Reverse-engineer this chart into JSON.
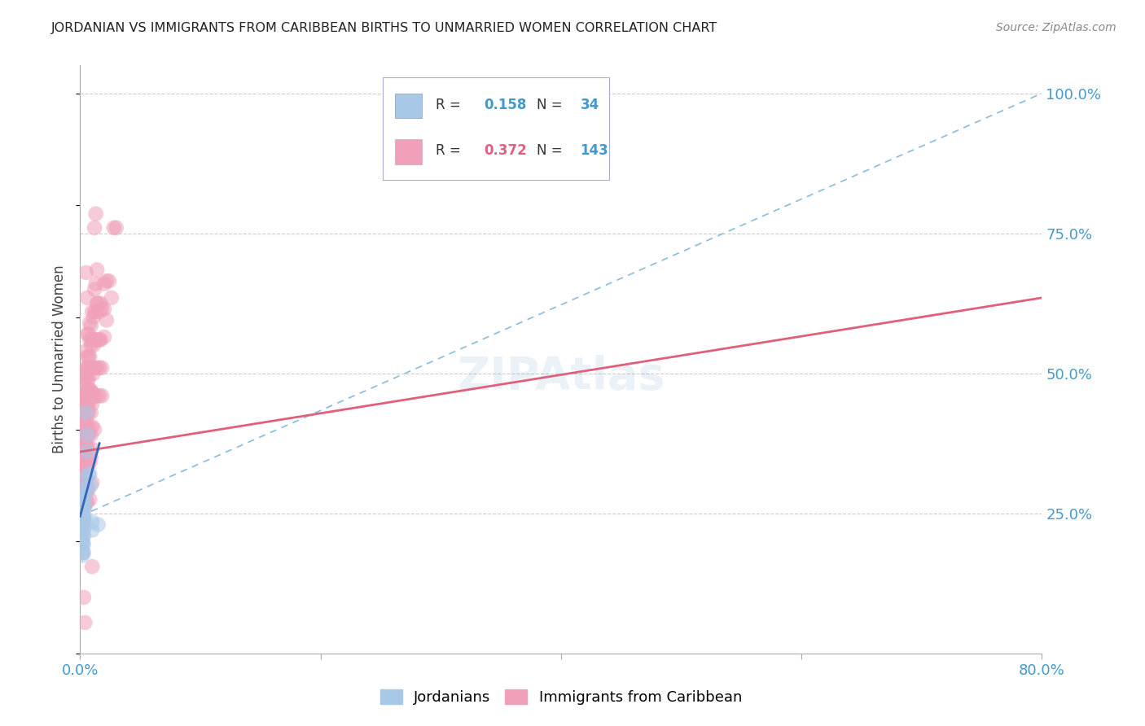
{
  "title": "JORDANIAN VS IMMIGRANTS FROM CARIBBEAN BIRTHS TO UNMARRIED WOMEN CORRELATION CHART",
  "source": "Source: ZipAtlas.com",
  "ylabel": "Births to Unmarried Women",
  "legend_jordanians": {
    "R": 0.158,
    "N": 34,
    "color": "#a8c8e8"
  },
  "legend_caribbean": {
    "R": 0.372,
    "N": 143,
    "color": "#f0a0b8"
  },
  "axis_color": "#4499cc",
  "jordanians_scatter": [
    [
      0.002,
      0.285
    ],
    [
      0.002,
      0.275
    ],
    [
      0.002,
      0.265
    ],
    [
      0.002,
      0.255
    ],
    [
      0.002,
      0.245
    ],
    [
      0.002,
      0.235
    ],
    [
      0.002,
      0.225
    ],
    [
      0.002,
      0.215
    ],
    [
      0.002,
      0.205
    ],
    [
      0.002,
      0.195
    ],
    [
      0.002,
      0.185
    ],
    [
      0.002,
      0.175
    ],
    [
      0.003,
      0.29
    ],
    [
      0.003,
      0.27
    ],
    [
      0.003,
      0.255
    ],
    [
      0.003,
      0.24
    ],
    [
      0.003,
      0.225
    ],
    [
      0.003,
      0.21
    ],
    [
      0.003,
      0.195
    ],
    [
      0.003,
      0.18
    ],
    [
      0.004,
      0.31
    ],
    [
      0.004,
      0.28
    ],
    [
      0.004,
      0.26
    ],
    [
      0.004,
      0.24
    ],
    [
      0.005,
      0.43
    ],
    [
      0.006,
      0.39
    ],
    [
      0.006,
      0.36
    ],
    [
      0.007,
      0.32
    ],
    [
      0.007,
      0.295
    ],
    [
      0.008,
      0.32
    ],
    [
      0.009,
      0.3
    ],
    [
      0.01,
      0.235
    ],
    [
      0.01,
      0.22
    ],
    [
      0.015,
      0.23
    ]
  ],
  "caribbean_scatter": [
    [
      0.002,
      0.38
    ],
    [
      0.002,
      0.36
    ],
    [
      0.002,
      0.34
    ],
    [
      0.002,
      0.32
    ],
    [
      0.002,
      0.3
    ],
    [
      0.002,
      0.28
    ],
    [
      0.002,
      0.26
    ],
    [
      0.002,
      0.24
    ],
    [
      0.002,
      0.22
    ],
    [
      0.002,
      0.2
    ],
    [
      0.002,
      0.18
    ],
    [
      0.003,
      0.46
    ],
    [
      0.003,
      0.44
    ],
    [
      0.003,
      0.42
    ],
    [
      0.003,
      0.4
    ],
    [
      0.003,
      0.38
    ],
    [
      0.003,
      0.36
    ],
    [
      0.003,
      0.34
    ],
    [
      0.003,
      0.32
    ],
    [
      0.003,
      0.3
    ],
    [
      0.003,
      0.28
    ],
    [
      0.003,
      0.26
    ],
    [
      0.003,
      0.24
    ],
    [
      0.003,
      0.22
    ],
    [
      0.003,
      0.1
    ],
    [
      0.004,
      0.5
    ],
    [
      0.004,
      0.48
    ],
    [
      0.004,
      0.46
    ],
    [
      0.004,
      0.44
    ],
    [
      0.004,
      0.42
    ],
    [
      0.004,
      0.4
    ],
    [
      0.004,
      0.38
    ],
    [
      0.004,
      0.36
    ],
    [
      0.004,
      0.34
    ],
    [
      0.004,
      0.32
    ],
    [
      0.004,
      0.3
    ],
    [
      0.004,
      0.28
    ],
    [
      0.004,
      0.055
    ],
    [
      0.005,
      0.68
    ],
    [
      0.005,
      0.54
    ],
    [
      0.005,
      0.51
    ],
    [
      0.005,
      0.49
    ],
    [
      0.005,
      0.47
    ],
    [
      0.005,
      0.45
    ],
    [
      0.005,
      0.43
    ],
    [
      0.005,
      0.41
    ],
    [
      0.005,
      0.39
    ],
    [
      0.005,
      0.37
    ],
    [
      0.005,
      0.35
    ],
    [
      0.005,
      0.33
    ],
    [
      0.005,
      0.31
    ],
    [
      0.005,
      0.29
    ],
    [
      0.005,
      0.27
    ],
    [
      0.006,
      0.635
    ],
    [
      0.006,
      0.57
    ],
    [
      0.006,
      0.53
    ],
    [
      0.006,
      0.51
    ],
    [
      0.006,
      0.49
    ],
    [
      0.006,
      0.47
    ],
    [
      0.006,
      0.45
    ],
    [
      0.006,
      0.43
    ],
    [
      0.006,
      0.41
    ],
    [
      0.006,
      0.39
    ],
    [
      0.006,
      0.37
    ],
    [
      0.006,
      0.29
    ],
    [
      0.006,
      0.27
    ],
    [
      0.007,
      0.57
    ],
    [
      0.007,
      0.53
    ],
    [
      0.007,
      0.51
    ],
    [
      0.007,
      0.49
    ],
    [
      0.007,
      0.47
    ],
    [
      0.007,
      0.45
    ],
    [
      0.007,
      0.43
    ],
    [
      0.007,
      0.39
    ],
    [
      0.007,
      0.36
    ],
    [
      0.008,
      0.59
    ],
    [
      0.008,
      0.56
    ],
    [
      0.008,
      0.53
    ],
    [
      0.008,
      0.51
    ],
    [
      0.008,
      0.47
    ],
    [
      0.008,
      0.45
    ],
    [
      0.008,
      0.4
    ],
    [
      0.008,
      0.34
    ],
    [
      0.008,
      0.275
    ],
    [
      0.009,
      0.585
    ],
    [
      0.009,
      0.55
    ],
    [
      0.009,
      0.51
    ],
    [
      0.009,
      0.47
    ],
    [
      0.009,
      0.43
    ],
    [
      0.009,
      0.39
    ],
    [
      0.009,
      0.35
    ],
    [
      0.01,
      0.61
    ],
    [
      0.01,
      0.56
    ],
    [
      0.01,
      0.51
    ],
    [
      0.01,
      0.465
    ],
    [
      0.01,
      0.445
    ],
    [
      0.01,
      0.405
    ],
    [
      0.01,
      0.365
    ],
    [
      0.01,
      0.305
    ],
    [
      0.01,
      0.155
    ],
    [
      0.011,
      0.6
    ],
    [
      0.011,
      0.55
    ],
    [
      0.011,
      0.5
    ],
    [
      0.012,
      0.76
    ],
    [
      0.012,
      0.65
    ],
    [
      0.012,
      0.61
    ],
    [
      0.012,
      0.56
    ],
    [
      0.012,
      0.51
    ],
    [
      0.012,
      0.46
    ],
    [
      0.012,
      0.4
    ],
    [
      0.013,
      0.785
    ],
    [
      0.013,
      0.66
    ],
    [
      0.013,
      0.61
    ],
    [
      0.013,
      0.56
    ],
    [
      0.014,
      0.685
    ],
    [
      0.014,
      0.625
    ],
    [
      0.014,
      0.51
    ],
    [
      0.014,
      0.46
    ],
    [
      0.015,
      0.625
    ],
    [
      0.015,
      0.56
    ],
    [
      0.016,
      0.61
    ],
    [
      0.016,
      0.56
    ],
    [
      0.016,
      0.51
    ],
    [
      0.016,
      0.46
    ],
    [
      0.017,
      0.625
    ],
    [
      0.017,
      0.56
    ],
    [
      0.018,
      0.615
    ],
    [
      0.018,
      0.51
    ],
    [
      0.018,
      0.46
    ],
    [
      0.02,
      0.66
    ],
    [
      0.02,
      0.615
    ],
    [
      0.02,
      0.565
    ],
    [
      0.022,
      0.665
    ],
    [
      0.022,
      0.595
    ],
    [
      0.024,
      0.665
    ],
    [
      0.026,
      0.635
    ],
    [
      0.028,
      0.76
    ],
    [
      0.03,
      0.76
    ]
  ],
  "jordanians_line": {
    "x0": 0.0,
    "y0": 0.245,
    "x1": 0.016,
    "y1": 0.375
  },
  "caribbean_line": {
    "x0": 0.0,
    "y0": 0.36,
    "x1": 0.8,
    "y1": 0.635
  },
  "blue_dashed_line": {
    "x0": 0.0,
    "y0": 0.245,
    "x1": 0.8,
    "y1": 1.0
  },
  "xlim": [
    0.0,
    0.8
  ],
  "ylim": [
    0.0,
    1.05
  ],
  "scatter_size": 180,
  "scatter_alpha": 0.55,
  "background_color": "#ffffff"
}
